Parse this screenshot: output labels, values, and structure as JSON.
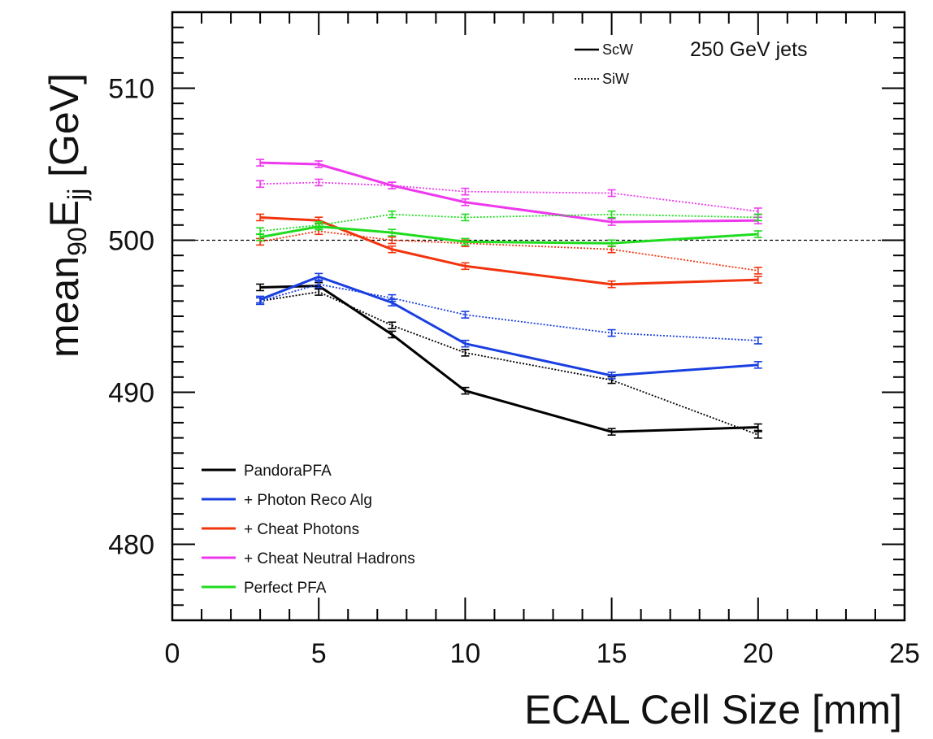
{
  "chart_data": {
    "type": "line",
    "title": "",
    "annotation": "250 GeV jets",
    "xlabel": "ECAL Cell Size [mm]",
    "ylabel": {
      "base": "mean",
      "sub1": "90",
      "mid": "E",
      "sub2": "jj",
      "tail": " [GeV]"
    },
    "xlim": [
      0,
      25
    ],
    "ylim": [
      475,
      515
    ],
    "x_major_ticks": [
      0,
      5,
      10,
      15,
      20,
      25
    ],
    "x_tick_labels": [
      "0",
      "5",
      "10",
      "15",
      "20",
      "25"
    ],
    "y_major_ticks": [
      480,
      490,
      500,
      510
    ],
    "y_tick_labels": [
      "480",
      "490",
      "500",
      "510"
    ],
    "x_minor_step": 1,
    "y_minor_step": 1,
    "grid": false,
    "reference_line": {
      "y": 500,
      "style": "dashed"
    },
    "x": [
      3,
      5,
      7.5,
      10,
      15,
      20
    ],
    "series": [
      {
        "name": "PandoraPFA",
        "color": "#000000",
        "ScW": [
          496.9,
          497.0,
          493.8,
          490.1,
          487.4,
          487.7
        ],
        "SiW": [
          496.0,
          496.6,
          494.4,
          492.6,
          490.8,
          487.2
        ]
      },
      {
        "name": "+ Photon Reco Alg",
        "color": "#1a3fe0",
        "ScW": [
          496.1,
          497.6,
          495.9,
          493.2,
          491.1,
          491.8
        ],
        "SiW": [
          496.0,
          497.1,
          496.2,
          495.1,
          493.9,
          493.4
        ]
      },
      {
        "name": "+ Cheat Photons",
        "color": "#f2340e",
        "ScW": [
          501.5,
          501.3,
          499.4,
          498.3,
          497.1,
          497.4
        ],
        "SiW": [
          499.9,
          500.6,
          500.0,
          499.8,
          499.4,
          498.0
        ]
      },
      {
        "name": "+ Cheat Neutral Hadrons",
        "color": "#ee38ee",
        "ScW": [
          505.1,
          505.0,
          503.6,
          502.5,
          501.2,
          501.3
        ],
        "SiW": [
          503.7,
          503.8,
          503.6,
          503.2,
          503.1,
          501.9
        ]
      },
      {
        "name": "Perfect PFA",
        "color": "#1fdc1f",
        "ScW": [
          500.2,
          500.9,
          500.5,
          499.9,
          499.8,
          500.4
        ],
        "SiW": [
          500.6,
          501.0,
          501.7,
          501.5,
          501.7,
          501.5
        ]
      }
    ],
    "style_legend": [
      {
        "label": "ScW",
        "line": "solid"
      },
      {
        "label": "SiW",
        "line": "dotted"
      }
    ],
    "legend_position": "bottom-left"
  }
}
